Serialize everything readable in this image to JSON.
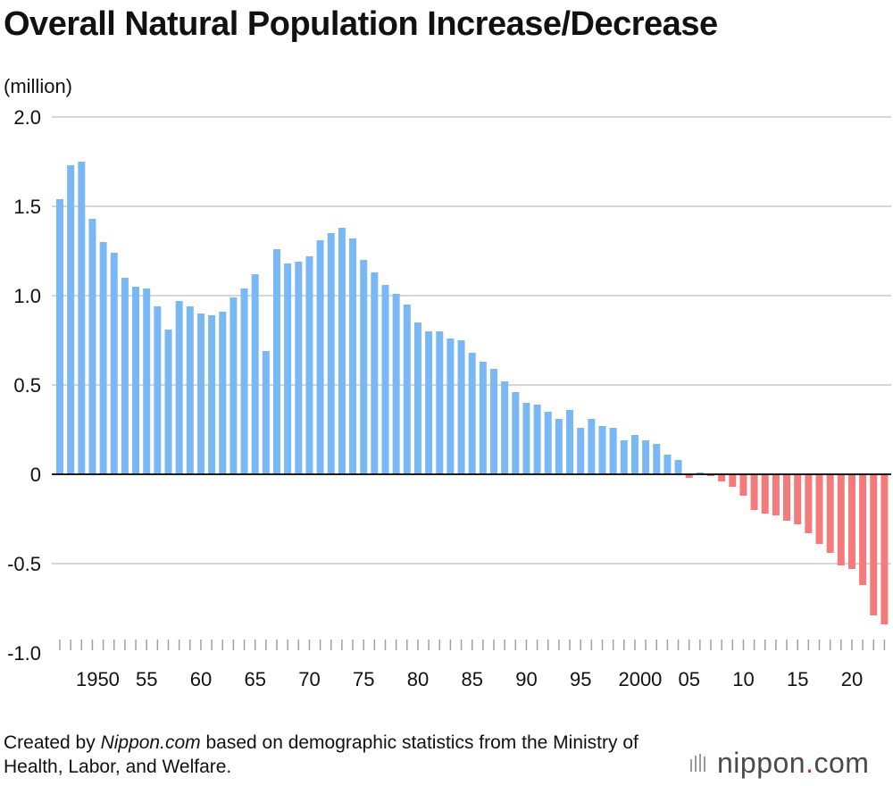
{
  "title": "Overall Natural Population Increase/Decrease",
  "footer": {
    "prefix": "Created by ",
    "site": "Nippon.com",
    "suffix": " based on demographic statistics from the Ministry of Health, Labor, and Welfare."
  },
  "logo": {
    "name": "nippon",
    "dot": ".",
    "tld": "com"
  },
  "chart_data": {
    "type": "bar",
    "title": "Overall Natural Population Increase/Decrease",
    "ylabel": "(million)",
    "ylim": [
      -1.0,
      2.0
    ],
    "yticks": [
      2.0,
      1.5,
      1.0,
      0.5,
      0,
      -0.5,
      -1.0
    ],
    "ytick_labels": [
      "2.0",
      "1.5",
      "1.0",
      "0.5",
      "0",
      "-0.5",
      "-1.0"
    ],
    "xtick_labels": [
      "1950",
      "55",
      "60",
      "65",
      "70",
      "75",
      "80",
      "85",
      "90",
      "95",
      "2000",
      "05",
      "10",
      "15",
      "20"
    ],
    "grid": true,
    "colors": {
      "positive": "#7ab8f5",
      "negative": "#f47b7b",
      "grid": "#c8c8c8",
      "zero": "#000000"
    },
    "categories": [
      1947,
      1948,
      1949,
      1950,
      1951,
      1952,
      1953,
      1954,
      1955,
      1956,
      1957,
      1958,
      1959,
      1960,
      1961,
      1962,
      1963,
      1964,
      1965,
      1966,
      1967,
      1968,
      1969,
      1970,
      1971,
      1972,
      1973,
      1974,
      1975,
      1976,
      1977,
      1978,
      1979,
      1980,
      1981,
      1982,
      1983,
      1984,
      1985,
      1986,
      1987,
      1988,
      1989,
      1990,
      1991,
      1992,
      1993,
      1994,
      1995,
      1996,
      1997,
      1998,
      1999,
      2000,
      2001,
      2002,
      2003,
      2004,
      2005,
      2006,
      2007,
      2008,
      2009,
      2010,
      2011,
      2012,
      2013,
      2014,
      2015,
      2016,
      2017,
      2018,
      2019,
      2020,
      2021,
      2022,
      2023
    ],
    "values": [
      1.54,
      1.73,
      1.75,
      1.43,
      1.3,
      1.24,
      1.1,
      1.05,
      1.04,
      0.94,
      0.81,
      0.97,
      0.94,
      0.9,
      0.89,
      0.91,
      0.99,
      1.04,
      1.12,
      0.69,
      1.26,
      1.18,
      1.19,
      1.22,
      1.31,
      1.35,
      1.38,
      1.32,
      1.2,
      1.13,
      1.06,
      1.01,
      0.95,
      0.85,
      0.8,
      0.8,
      0.76,
      0.75,
      0.68,
      0.63,
      0.59,
      0.52,
      0.46,
      0.4,
      0.39,
      0.35,
      0.31,
      0.36,
      0.26,
      0.31,
      0.27,
      0.26,
      0.19,
      0.22,
      0.19,
      0.17,
      0.11,
      0.08,
      -0.02,
      0.01,
      -0.01,
      -0.04,
      -0.07,
      -0.12,
      -0.2,
      -0.22,
      -0.23,
      -0.26,
      -0.28,
      -0.33,
      -0.39,
      -0.44,
      -0.51,
      -0.53,
      -0.62,
      -0.79,
      -0.84
    ]
  }
}
